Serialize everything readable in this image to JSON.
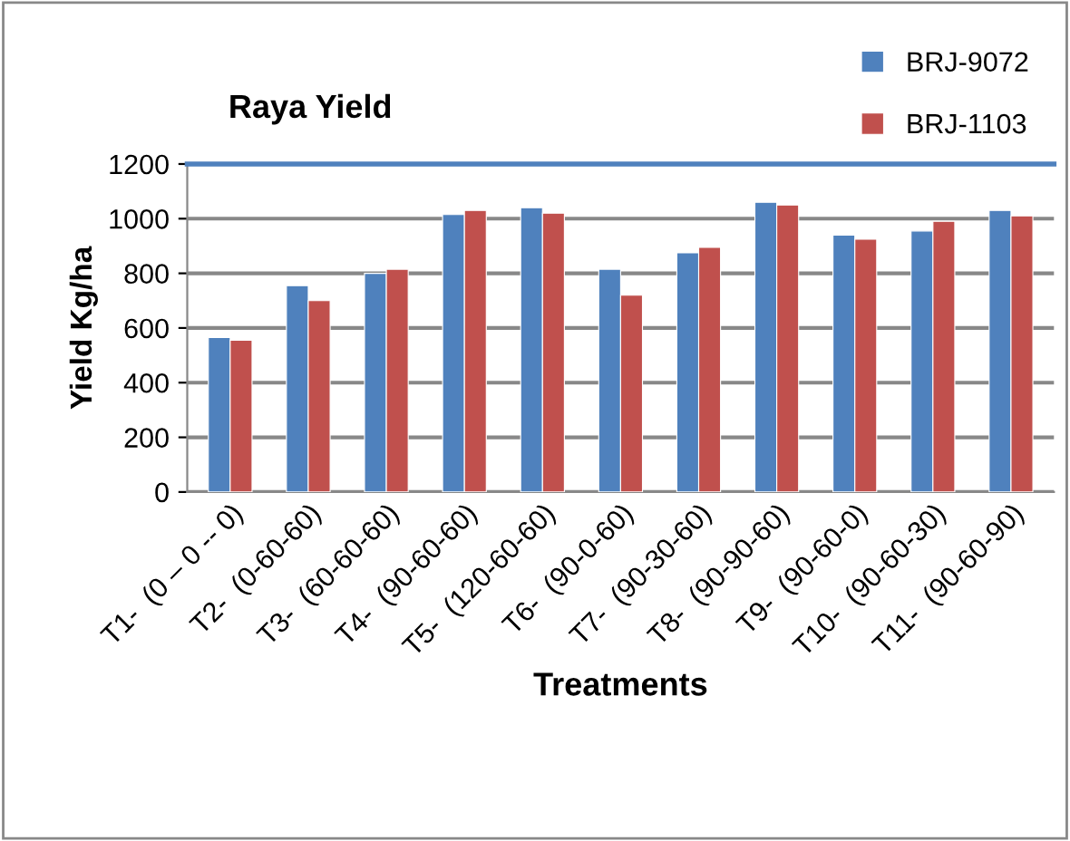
{
  "chart_data": {
    "type": "bar",
    "title": "Raya Yield",
    "xlabel": "Treatments",
    "ylabel": "Yield Kg/ha",
    "categories": [
      "T1-  (0 – 0 -- 0)",
      "T2-  (0-60-60)",
      "T3-  (60-60-60)",
      "T4-  (90-60-60)",
      "T5-  (120-60-60)",
      "T6-  (90-0-60)",
      "T7-  (90-30-60)",
      "T8-  (90-90-60)",
      "T9-  (90-60-0)",
      "T10-  (90-60-30)",
      "T11-  (90-60-90)"
    ],
    "series": [
      {
        "name": "BRJ-9072",
        "color": "#4f81bd",
        "values": [
          565,
          755,
          800,
          1015,
          1040,
          815,
          875,
          1060,
          940,
          955,
          1030
        ]
      },
      {
        "name": "BRJ-1103",
        "color": "#c0504d",
        "values": [
          555,
          700,
          815,
          1030,
          1020,
          720,
          895,
          1050,
          925,
          990,
          1010
        ]
      }
    ],
    "ylim": [
      0,
      1200
    ],
    "yticks": [
      0,
      200,
      400,
      600,
      800,
      1000,
      1200
    ],
    "grid": "y",
    "legend": "top right"
  }
}
